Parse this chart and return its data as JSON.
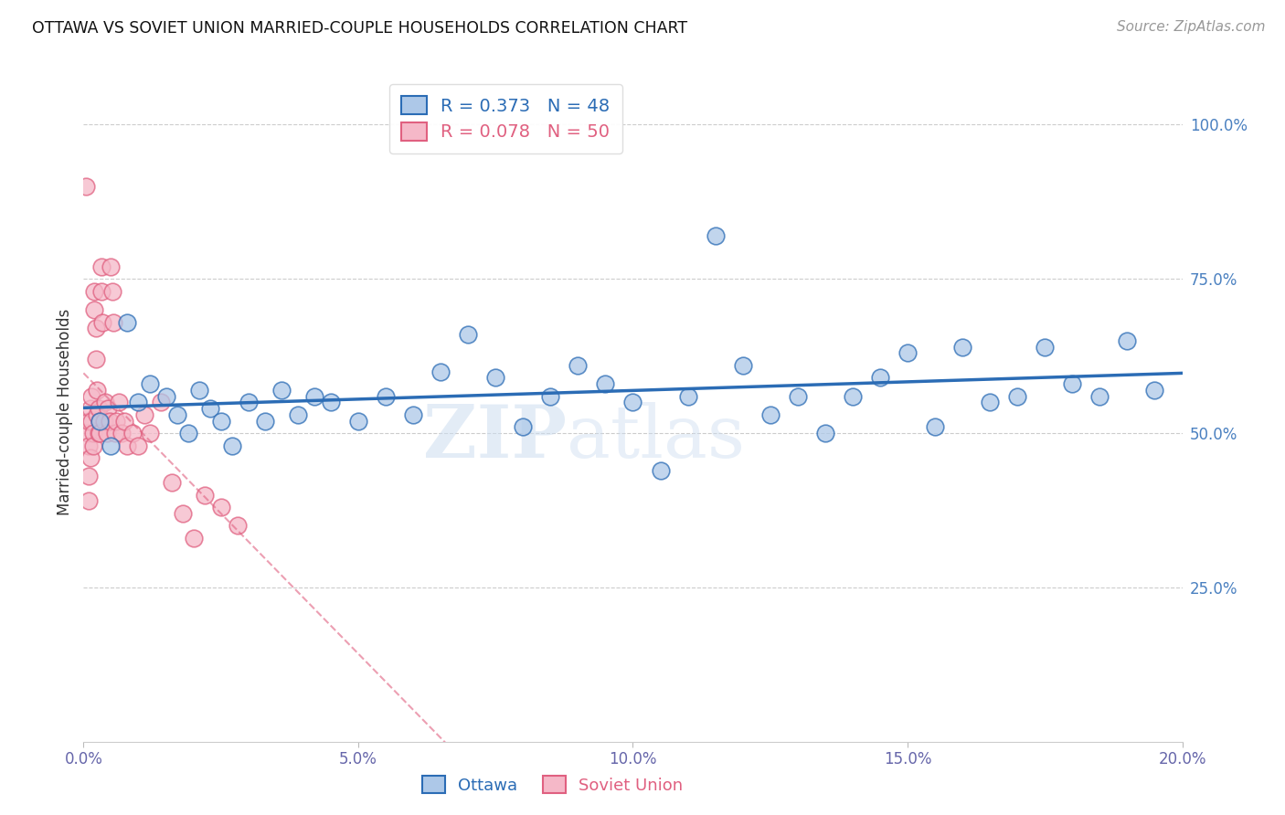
{
  "title": "OTTAWA VS SOVIET UNION MARRIED-COUPLE HOUSEHOLDS CORRELATION CHART",
  "source": "Source: ZipAtlas.com",
  "ylabel": "Married-couple Households",
  "xlim": [
    0.0,
    20.0
  ],
  "ylim": [
    0.0,
    107.0
  ],
  "ytick_values": [
    25.0,
    50.0,
    75.0,
    100.0
  ],
  "xtick_values": [
    0.0,
    5.0,
    10.0,
    15.0,
    20.0
  ],
  "ottawa_R": 0.373,
  "ottawa_N": 48,
  "soviet_R": 0.078,
  "soviet_N": 50,
  "legend_label_ottawa": "Ottawa",
  "legend_label_soviet": "Soviet Union",
  "ottawa_color": "#adc8e8",
  "ottawa_line_color": "#2b6cb5",
  "soviet_color": "#f5b8c8",
  "soviet_line_color": "#e06080",
  "watermark_zip": "ZIP",
  "watermark_atlas": "atlas",
  "ottawa_x": [
    0.3,
    0.5,
    0.8,
    1.0,
    1.2,
    1.5,
    1.7,
    1.9,
    2.1,
    2.3,
    2.5,
    2.7,
    3.0,
    3.3,
    3.6,
    3.9,
    4.2,
    4.5,
    5.0,
    5.5,
    6.0,
    6.5,
    7.0,
    7.5,
    8.0,
    8.5,
    9.0,
    9.5,
    10.0,
    10.5,
    11.0,
    11.5,
    12.0,
    12.5,
    13.0,
    13.5,
    14.0,
    14.5,
    15.0,
    15.5,
    16.0,
    16.5,
    17.0,
    17.5,
    18.0,
    18.5,
    19.0,
    19.5
  ],
  "ottawa_y": [
    52,
    48,
    68,
    55,
    58,
    56,
    53,
    50,
    57,
    54,
    52,
    48,
    55,
    52,
    57,
    53,
    56,
    55,
    52,
    56,
    53,
    60,
    66,
    59,
    51,
    56,
    61,
    58,
    55,
    44,
    56,
    82,
    61,
    53,
    56,
    50,
    56,
    59,
    63,
    51,
    64,
    55,
    56,
    64,
    58,
    56,
    65,
    57
  ],
  "soviet_x": [
    0.05,
    0.08,
    0.1,
    0.1,
    0.12,
    0.13,
    0.15,
    0.15,
    0.17,
    0.18,
    0.2,
    0.2,
    0.22,
    0.23,
    0.25,
    0.25,
    0.27,
    0.28,
    0.3,
    0.3,
    0.32,
    0.33,
    0.35,
    0.37,
    0.4,
    0.42,
    0.45,
    0.48,
    0.5,
    0.52,
    0.55,
    0.58,
    0.6,
    0.65,
    0.7,
    0.75,
    0.8,
    0.9,
    1.0,
    1.1,
    1.2,
    1.4,
    1.6,
    1.8,
    2.0,
    2.2,
    2.5,
    2.8,
    0.1,
    0.1
  ],
  "soviet_y": [
    90,
    50,
    52,
    48,
    46,
    54,
    56,
    52,
    50,
    48,
    73,
    70,
    67,
    62,
    57,
    53,
    50,
    54,
    52,
    50,
    77,
    73,
    68,
    52,
    55,
    50,
    54,
    52,
    77,
    73,
    68,
    50,
    52,
    55,
    50,
    52,
    48,
    50,
    48,
    53,
    50,
    55,
    42,
    37,
    33,
    40,
    38,
    35,
    43,
    39
  ]
}
